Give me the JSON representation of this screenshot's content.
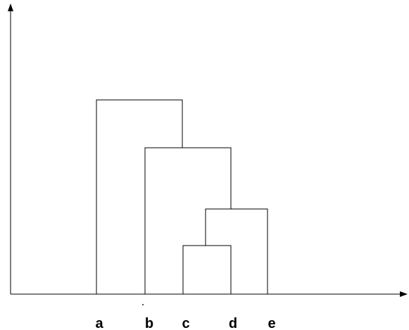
{
  "diagram": {
    "type": "dendrogram",
    "leaves": [
      "a",
      "b",
      "c",
      "d",
      "e"
    ],
    "merges": [
      {
        "left": "c",
        "right": "d",
        "height": 1
      },
      {
        "left": "cd",
        "right": "e",
        "height": 1.6
      },
      {
        "left": "b",
        "right": "cde",
        "height": 2.6
      },
      {
        "left": "a",
        "right": "bcde",
        "height": 3.4
      }
    ],
    "line_color": "#000000",
    "background": "#ffffff"
  }
}
